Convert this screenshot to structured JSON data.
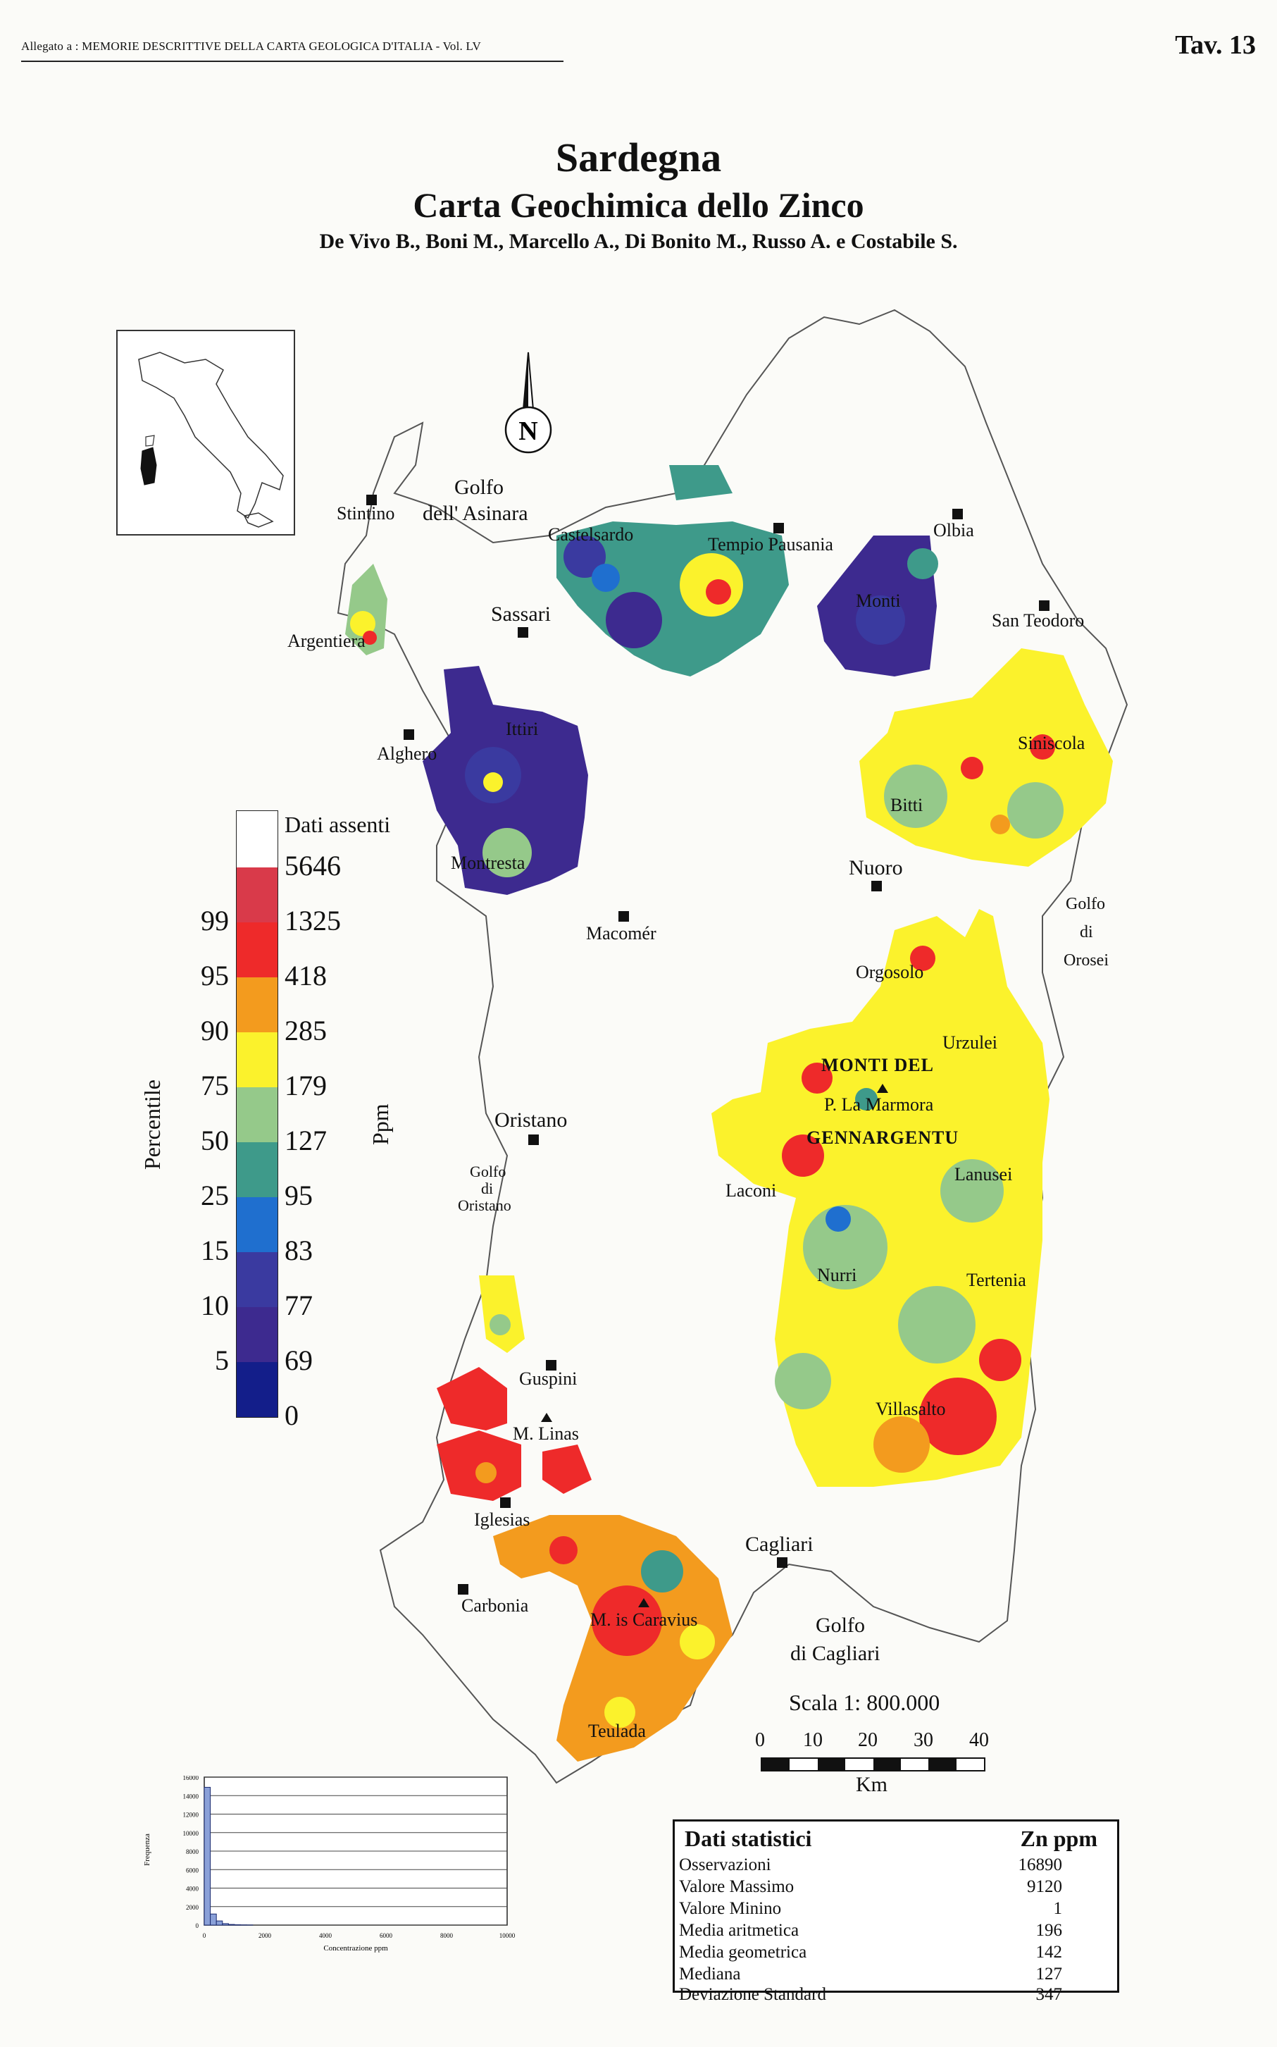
{
  "header": {
    "left": "Allegato a : MEMORIE DESCRITTIVE DELLA CARTA GEOLOGICA D'ITALIA - Vol. LV",
    "right": "Tav. 13"
  },
  "title": {
    "main": "Sardegna",
    "sub": "Carta Geochimica dello Zinco",
    "authors": "De Vivo B., Boni M., Marcello A., Di Bonito M., Russo A. e Costabile S."
  },
  "north_label": "N",
  "places": {
    "golfo_asinara": [
      "Golfo",
      "dell'  Asinara"
    ],
    "stintino": "Stintino",
    "argentiera": "Argentiera",
    "sassari": "Sassari",
    "castelsardo": "Castelsardo",
    "tempio": "Tempio Pausania",
    "olbia": "Olbia",
    "monti": "Monti",
    "san_teodoro": "San Teodoro",
    "siniscola": "Siniscola",
    "bitti": "Bitti",
    "nuoro": "Nuoro",
    "ittiri": "Ittiri",
    "alghero": "Alghero",
    "montresta": "Montresta",
    "macomer": "Macomér",
    "golfo_orosei": [
      "Golfo",
      "di",
      "Orosei"
    ],
    "orgosolo": "Orgosolo",
    "urzulei": "Urzulei",
    "monti_del": "MONTI  DEL",
    "la_marmora": "P. La Marmora",
    "gennargentu": "GENNARGENTU",
    "lanusei": "Lanusei",
    "laconi": "Laconi",
    "oristano": "Oristano",
    "golfo_oristano": [
      "Golfo",
      "di",
      "Oristano"
    ],
    "nurri": "Nurri",
    "tertenia": "Tertenia",
    "guspini": "Guspini",
    "villasalto": "Villasalto",
    "m_linas": "M. Linas",
    "iglesias": "Iglesias",
    "cagliari": "Cagliari",
    "carbonia": "Carbonia",
    "m_caravius": "M. is Caravius",
    "golfo_cagliari": [
      "Golfo",
      "di  Cagliari"
    ],
    "teulada": "Teulada"
  },
  "legend": {
    "missing_label": "Dati assenti",
    "ppm_axis": "Ppm",
    "percentile_axis": "Percentile",
    "ppm_values": [
      "5646",
      "1325",
      "418",
      "285",
      "179",
      "127",
      "95",
      "83",
      "77",
      "69",
      "0"
    ],
    "percentiles": [
      "99",
      "95",
      "90",
      "75",
      "50",
      "25",
      "15",
      "10",
      "5"
    ],
    "colors": [
      "#ffffff",
      "#d93a4a",
      "#ee2a2a",
      "#f39b1e",
      "#fbf22c",
      "#95c98a",
      "#3e9a8a",
      "#1f6fcf",
      "#3a3aa0",
      "#3d2a8f",
      "#131e8a"
    ]
  },
  "scale": {
    "label": "Scala 1: 800.000",
    "ticks": [
      "0",
      "10",
      "20",
      "30",
      "40"
    ],
    "unit": "Km"
  },
  "histogram": {
    "ylabel": "Frequenza",
    "xlabel": "Concentrazione ppm",
    "yticks": [
      "16000",
      "14000",
      "12000",
      "10000",
      "8000",
      "6000",
      "4000",
      "2000",
      "0"
    ],
    "xticks": [
      "0",
      "2000",
      "4000",
      "6000",
      "8000",
      "10000"
    ],
    "bars": [
      14900,
      1200,
      450,
      160,
      70,
      40,
      20,
      10
    ]
  },
  "stats": {
    "title": "Dati  statistici",
    "unit_header": "Zn  ppm",
    "rows": [
      {
        "label": "Osservazioni",
        "value": "16890"
      },
      {
        "label": "Valore Massimo",
        "value": "9120"
      },
      {
        "label": "Valore Minino",
        "value": "1"
      },
      {
        "label": "Media aritmetica",
        "value": "196"
      },
      {
        "label": "Media geometrica",
        "value": "142"
      },
      {
        "label": "Mediana",
        "value": "127"
      },
      {
        "label": "Deviazione Standard",
        "value": "347"
      }
    ]
  }
}
